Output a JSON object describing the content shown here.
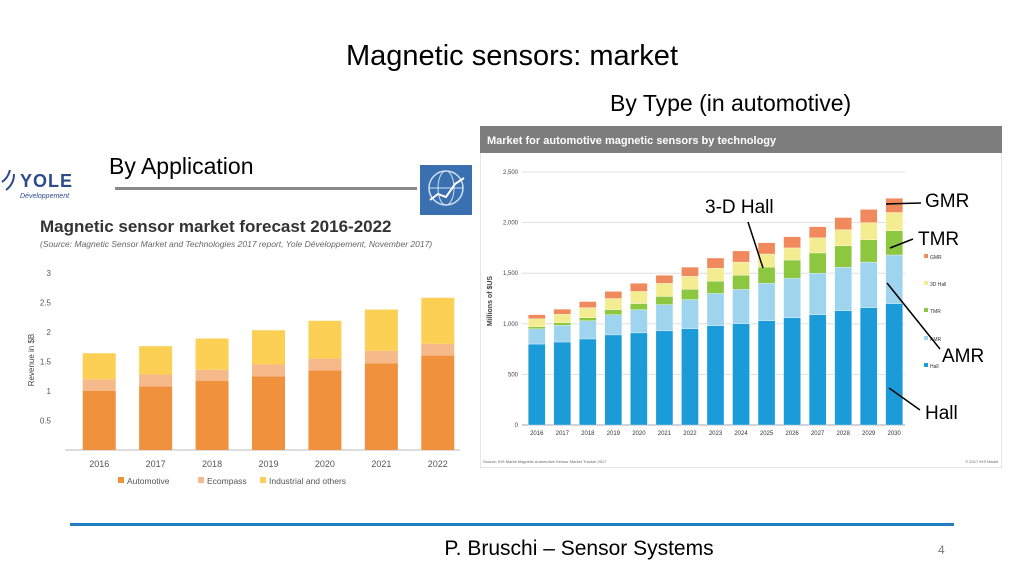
{
  "slide": {
    "title": "Magnetic sensors: market",
    "subtitle_type": "By Type (in automotive)",
    "subtitle_application": "By Application",
    "footer": "P. Bruschi – Sensor Systems",
    "page_number": "4",
    "accent_color": "#1f7fc1"
  },
  "yole": {
    "logo_text": "YOLE",
    "logo_subtext": "Développement",
    "globe_icon": "globe-chart-icon"
  },
  "callouts": {
    "hall3d": "3-D Hall",
    "gmr": "GMR",
    "tmr": "TMR",
    "amr": "AMR",
    "hall": "Hall"
  },
  "chart_data": [
    {
      "type": "bar",
      "stacked": true,
      "title": "Magnetic sensor market forecast 2016-2022",
      "subtitle": "(Source: Magnetic Sensor Market and Technologies 2017 report, Yole Développement, November 2017)",
      "ylabel": "Revenue in $B",
      "xlabel": "",
      "ylim": [
        0,
        3
      ],
      "yticks": [
        "0.5",
        "1",
        "1.5",
        "2",
        "2.5",
        "3"
      ],
      "yticks_values": [
        0.5,
        1,
        1.5,
        2,
        2.5,
        3
      ],
      "grid": false,
      "legend_position": "bottom",
      "categories": [
        "2016",
        "2017",
        "2018",
        "2019",
        "2020",
        "2021",
        "2022"
      ],
      "series": [
        {
          "name": "Automotive",
          "color": "#f0913e",
          "values": [
            1.0,
            1.08,
            1.17,
            1.25,
            1.35,
            1.47,
            1.6
          ]
        },
        {
          "name": "Ecompass",
          "color": "#f6b98a",
          "values": [
            0.2,
            0.2,
            0.19,
            0.2,
            0.2,
            0.21,
            0.2
          ]
        },
        {
          "name": "Industrial and others",
          "color": "#fbd054",
          "values": [
            0.44,
            0.48,
            0.53,
            0.58,
            0.64,
            0.7,
            0.78
          ]
        }
      ]
    },
    {
      "type": "bar",
      "stacked": true,
      "title": "Market for automotive magnetic sensors by technology",
      "ylabel": "Millions of $US",
      "xlabel": "",
      "ylim": [
        0,
        2500
      ],
      "yticks": [
        "0",
        "500",
        "1,000",
        "1,500",
        "2,000",
        "2,500"
      ],
      "yticks_values": [
        0,
        500,
        1000,
        1500,
        2000,
        2500
      ],
      "grid": true,
      "legend_position": "right",
      "source": "Source: IHS Markit Magnetic Automotive Sensor Market Tracker 2017",
      "copyright": "© 2017 IHS Markit",
      "categories": [
        "2016",
        "2017",
        "2018",
        "2019",
        "2020",
        "2021",
        "2022",
        "2023",
        "2024",
        "2025",
        "2026",
        "2027",
        "2028",
        "2029",
        "2030"
      ],
      "series": [
        {
          "name": "Hall",
          "color": "#1b9bd7",
          "values": [
            800,
            820,
            850,
            890,
            910,
            930,
            950,
            980,
            1000,
            1030,
            1060,
            1090,
            1130,
            1160,
            1200
          ]
        },
        {
          "name": "AMR",
          "color": "#9fd4ee",
          "values": [
            150,
            165,
            180,
            200,
            230,
            260,
            290,
            320,
            340,
            370,
            390,
            410,
            430,
            450,
            480
          ]
        },
        {
          "name": "TMR",
          "color": "#8dc63f",
          "values": [
            20,
            25,
            30,
            50,
            60,
            80,
            100,
            120,
            140,
            160,
            180,
            200,
            210,
            220,
            240
          ]
        },
        {
          "name": "3D Hall",
          "color": "#f3ec90",
          "values": [
            80,
            85,
            100,
            110,
            120,
            130,
            130,
            130,
            130,
            130,
            120,
            150,
            160,
            170,
            180
          ]
        },
        {
          "name": "GMR",
          "color": "#f08a5d",
          "values": [
            40,
            50,
            60,
            70,
            80,
            80,
            90,
            100,
            110,
            110,
            110,
            110,
            120,
            130,
            140
          ]
        }
      ]
    }
  ]
}
